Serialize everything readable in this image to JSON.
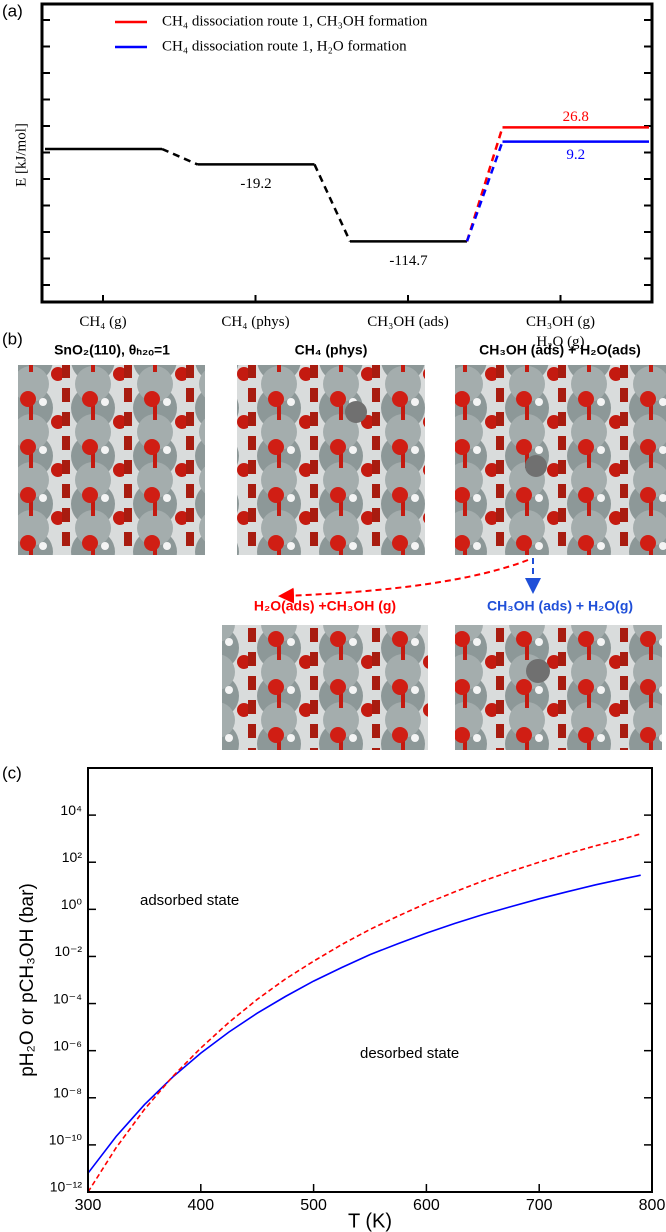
{
  "chart_data": [
    {
      "type": "energy",
      "panel_label": "(a)",
      "ylabel": "E [kJ/mol]",
      "categories": [
        "CH₄ (g)",
        "CH₄ (phys)",
        "CH₃OH (ads)",
        "CH₃OH (g)\nH₂O (g)"
      ],
      "ylim": [
        -190,
        180
      ],
      "shared_color": "#000000",
      "series": [
        {
          "name": "CH₄ dissociation route 1, CH₃OH formation",
          "color": "#ff0000",
          "values": [
            0,
            -19.2,
            -114.7,
            26.8
          ]
        },
        {
          "name": "CH₄ dissociation route 1, H₂O formation",
          "color": "#0000ff",
          "values": [
            0,
            -19.2,
            -114.7,
            9.2
          ]
        }
      ]
    },
    {
      "type": "line",
      "panel_label": "(c)",
      "xlabel": "T (K)",
      "ylabel": "pH₂O or pCH₃OH (bar)",
      "annotations": [
        "adsorbed state",
        "desorbed state"
      ],
      "log_y": true,
      "xlim": [
        300,
        800
      ],
      "xticks": [
        300,
        400,
        500,
        600,
        700,
        800
      ],
      "ylim": [
        1e-12,
        1000000.0
      ],
      "yticks": [
        {
          "value": 1e-12,
          "label": "10⁻¹²"
        },
        {
          "value": 1e-10,
          "label": "10⁻¹⁰"
        },
        {
          "value": 1e-08,
          "label": "10⁻⁸"
        },
        {
          "value": 1e-06,
          "label": "10⁻⁶"
        },
        {
          "value": 0.0001,
          "label": "10⁻⁴"
        },
        {
          "value": 0.01,
          "label": "10⁻²"
        },
        {
          "value": 1,
          "label": "10⁰"
        },
        {
          "value": 100,
          "label": "10²"
        },
        {
          "value": 10000,
          "label": "10⁴"
        }
      ],
      "x": [
        300,
        325,
        350,
        375,
        400,
        425,
        450,
        475,
        500,
        525,
        550,
        575,
        600,
        625,
        650,
        675,
        700,
        725,
        750,
        775,
        790
      ],
      "series": [
        {
          "color": "#0000ff",
          "dashed": false,
          "values": [
            6.3e-12,
            2.3e-10,
            5.1e-09,
            7.5e-08,
            7.9e-07,
            6.2e-06,
            3.9e-05,
            0.0002,
            0.0009,
            0.0034,
            0.012,
            0.035,
            0.098,
            0.25,
            0.6,
            1.3,
            2.8,
            5.6,
            11,
            20,
            28
          ]
        },
        {
          "color": "#ff0000",
          "dashed": true,
          "values": [
            1e-12,
            7.7e-11,
            3.2e-09,
            7.9e-08,
            1.3e-06,
            1.6e-05,
            0.00015,
            0.0011,
            0.0063,
            0.032,
            0.14,
            0.52,
            1.8,
            5.5,
            16,
            41,
            100,
            230,
            500,
            1000,
            1600
          ]
        }
      ]
    }
  ],
  "panel_b": {
    "label": "(b)",
    "images": [
      {
        "title": "SnO₂(110), θₕ₂ₒ=1"
      },
      {
        "title": "CH₄ (phys)"
      },
      {
        "title": "CH₃OH (ads) + H₂O(ads)"
      },
      {
        "title": "H₂O(ads) +CH₃OH (g)"
      },
      {
        "title": "CH₃OH (ads) + H₂O(g)"
      }
    ]
  }
}
